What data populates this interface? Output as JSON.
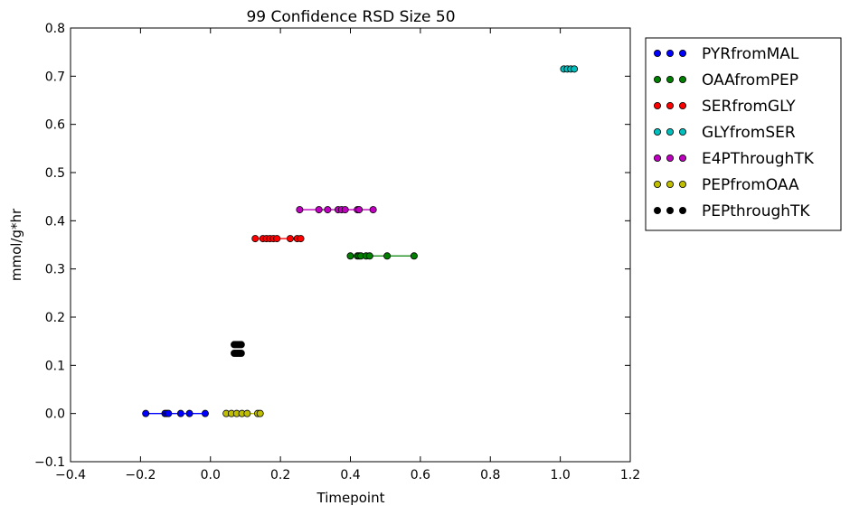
{
  "chart_data": {
    "type": "scatter",
    "title": "99 Confidence RSD Size 50",
    "xlabel": "Timepoint",
    "ylabel": "mmol/g*hr",
    "xlim": [
      -0.4,
      1.2
    ],
    "ylim": [
      -0.1,
      0.8
    ],
    "x_ticks": [
      "−0.4",
      "−0.2",
      "0.0",
      "0.2",
      "0.4",
      "0.6",
      "0.8",
      "1.0",
      "1.2"
    ],
    "y_ticks": [
      "−0.1",
      "0.0",
      "0.1",
      "0.2",
      "0.3",
      "0.4",
      "0.5",
      "0.6",
      "0.7",
      "0.8"
    ],
    "grid": false,
    "legend_position": "outside-right-top",
    "series": [
      {
        "name": "PYRfromMAL",
        "color": "#0000ff",
        "connected": true,
        "points": [
          {
            "x": -0.185,
            "y": 0.0
          },
          {
            "x": -0.13,
            "y": 0.0
          },
          {
            "x": -0.125,
            "y": 0.0
          },
          {
            "x": -0.12,
            "y": 0.0
          },
          {
            "x": -0.085,
            "y": 0.0
          },
          {
            "x": -0.06,
            "y": 0.0
          },
          {
            "x": -0.015,
            "y": 0.0
          }
        ]
      },
      {
        "name": "OAAfromPEP",
        "color": "#008000",
        "connected": true,
        "points": [
          {
            "x": 0.4,
            "y": 0.327
          },
          {
            "x": 0.42,
            "y": 0.327
          },
          {
            "x": 0.425,
            "y": 0.327
          },
          {
            "x": 0.43,
            "y": 0.327
          },
          {
            "x": 0.445,
            "y": 0.327
          },
          {
            "x": 0.455,
            "y": 0.327
          },
          {
            "x": 0.505,
            "y": 0.327
          },
          {
            "x": 0.582,
            "y": 0.327
          }
        ]
      },
      {
        "name": "SERfromGLY",
        "color": "#ff0000",
        "connected": true,
        "points": [
          {
            "x": 0.128,
            "y": 0.363
          },
          {
            "x": 0.15,
            "y": 0.363
          },
          {
            "x": 0.16,
            "y": 0.363
          },
          {
            "x": 0.17,
            "y": 0.363
          },
          {
            "x": 0.18,
            "y": 0.363
          },
          {
            "x": 0.19,
            "y": 0.363
          },
          {
            "x": 0.228,
            "y": 0.363
          },
          {
            "x": 0.248,
            "y": 0.363
          },
          {
            "x": 0.258,
            "y": 0.363
          }
        ]
      },
      {
        "name": "GLYfromSER",
        "color": "#00bfbf",
        "connected": true,
        "points": [
          {
            "x": 1.01,
            "y": 0.715
          },
          {
            "x": 1.02,
            "y": 0.715
          },
          {
            "x": 1.03,
            "y": 0.715
          },
          {
            "x": 1.04,
            "y": 0.715
          }
        ]
      },
      {
        "name": "E4PThroughTK",
        "color": "#bf00bf",
        "connected": true,
        "points": [
          {
            "x": 0.255,
            "y": 0.423
          },
          {
            "x": 0.31,
            "y": 0.423
          },
          {
            "x": 0.335,
            "y": 0.423
          },
          {
            "x": 0.365,
            "y": 0.423
          },
          {
            "x": 0.375,
            "y": 0.423
          },
          {
            "x": 0.385,
            "y": 0.423
          },
          {
            "x": 0.42,
            "y": 0.423
          },
          {
            "x": 0.425,
            "y": 0.423
          },
          {
            "x": 0.465,
            "y": 0.423
          }
        ]
      },
      {
        "name": "PEPfromOAA",
        "color": "#bfbf00",
        "connected": true,
        "points": [
          {
            "x": 0.045,
            "y": 0.0
          },
          {
            "x": 0.06,
            "y": 0.0
          },
          {
            "x": 0.075,
            "y": 0.0
          },
          {
            "x": 0.09,
            "y": 0.0
          },
          {
            "x": 0.105,
            "y": 0.0
          },
          {
            "x": 0.135,
            "y": 0.0
          },
          {
            "x": 0.142,
            "y": 0.0
          }
        ]
      },
      {
        "name": "PEPthroughTK",
        "color": "#000000",
        "connected": false,
        "points": [
          {
            "x": 0.068,
            "y": 0.143
          },
          {
            "x": 0.073,
            "y": 0.143
          },
          {
            "x": 0.078,
            "y": 0.143
          },
          {
            "x": 0.083,
            "y": 0.143
          },
          {
            "x": 0.088,
            "y": 0.143
          },
          {
            "x": 0.068,
            "y": 0.125
          },
          {
            "x": 0.073,
            "y": 0.125
          },
          {
            "x": 0.078,
            "y": 0.125
          },
          {
            "x": 0.083,
            "y": 0.125
          },
          {
            "x": 0.088,
            "y": 0.125
          }
        ]
      }
    ]
  }
}
